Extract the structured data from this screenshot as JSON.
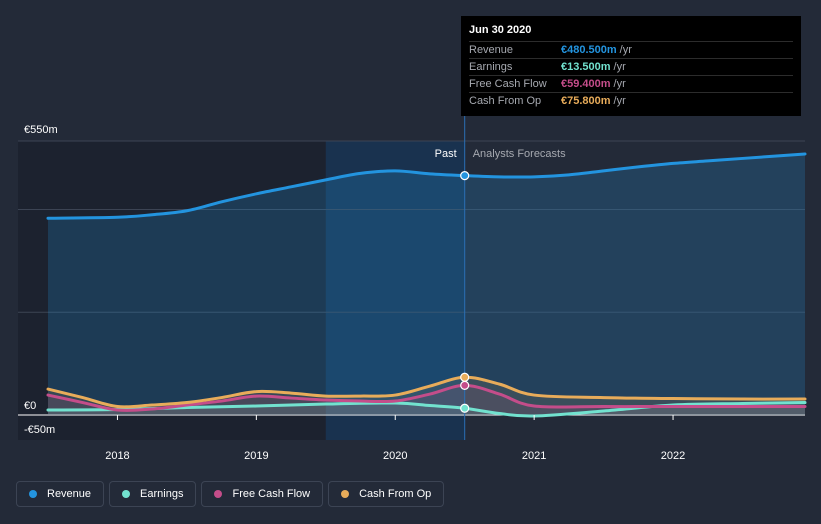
{
  "colors": {
    "revenue": "#2394df",
    "earnings": "#72e2cf",
    "fcf": "#c44d8a",
    "cfo": "#e8ac5a",
    "grid": "#3c4454",
    "background": "#232a38"
  },
  "tooltip": {
    "date": "Jun 30 2020",
    "rows": [
      {
        "name": "Revenue",
        "value": "€480.500m",
        "unit": "/yr",
        "color": "#2394df"
      },
      {
        "name": "Earnings",
        "value": "€13.500m",
        "unit": "/yr",
        "color": "#72e2cf"
      },
      {
        "name": "Free Cash Flow",
        "value": "€59.400m",
        "unit": "/yr",
        "color": "#c44d8a"
      },
      {
        "name": "Cash From Op",
        "value": "€75.800m",
        "unit": "/yr",
        "color": "#e8ac5a"
      }
    ]
  },
  "legend": [
    {
      "label": "Revenue",
      "color": "#2394df"
    },
    {
      "label": "Earnings",
      "color": "#72e2cf"
    },
    {
      "label": "Free Cash Flow",
      "color": "#c44d8a"
    },
    {
      "label": "Cash From Op",
      "color": "#e8ac5a"
    }
  ],
  "chart_data": {
    "type": "area",
    "title": "",
    "xlabel": "",
    "ylabel": "",
    "currency": "€",
    "y_labels": [
      "€550m",
      "€0",
      "-€50m"
    ],
    "ylim": [
      -50,
      550
    ],
    "xlim": [
      2017.5,
      2022.95
    ],
    "x_ticks": [
      2018,
      2019,
      2020,
      2021,
      2022
    ],
    "x_tick_labels": [
      "2018",
      "2019",
      "2020",
      "2021",
      "2022"
    ],
    "past_label": "Past",
    "forecast_label": "Analysts Forecasts",
    "past_shade_start": 2019.5,
    "divider_x": 2020.5,
    "highlight_date": "Jun 30 2020",
    "series": [
      {
        "name": "Revenue",
        "key": "revenue",
        "x": [
          2017.5,
          2018.0,
          2018.25,
          2018.5,
          2018.75,
          2019.0,
          2019.25,
          2019.5,
          2019.75,
          2020.0,
          2020.25,
          2020.5,
          2020.75,
          2021.0,
          2021.25,
          2021.5,
          2021.75,
          2022.0,
          2022.25,
          2022.5,
          2022.95
        ],
        "values": [
          395,
          397,
          402,
          410,
          428,
          444,
          458,
          472,
          485,
          490,
          484,
          480.5,
          478,
          478,
          482,
          490,
          498,
          505,
          510,
          515,
          524
        ]
      },
      {
        "name": "Earnings",
        "key": "earnings",
        "x": [
          2017.5,
          2018.0,
          2018.5,
          2019.0,
          2019.5,
          2020.0,
          2020.25,
          2020.5,
          2020.75,
          2021.0,
          2021.5,
          2022.0,
          2022.5,
          2022.95
        ],
        "values": [
          10,
          11,
          15,
          18,
          22,
          24,
          19,
          13.5,
          3,
          -2,
          8,
          20,
          23,
          25
        ]
      },
      {
        "name": "Free Cash Flow",
        "key": "fcf",
        "x": [
          2017.5,
          2017.75,
          2018.0,
          2018.25,
          2018.5,
          2018.75,
          2019.0,
          2019.25,
          2019.5,
          2019.75,
          2020.0,
          2020.25,
          2020.5,
          2020.75,
          2021.0,
          2021.5,
          2022.0,
          2022.5,
          2022.95
        ],
        "values": [
          40,
          25,
          10,
          12,
          20,
          28,
          38,
          34,
          30,
          28,
          28,
          42,
          59.4,
          42,
          18,
          17,
          17,
          17,
          17
        ]
      },
      {
        "name": "Cash From Op",
        "key": "cfo",
        "x": [
          2017.5,
          2017.75,
          2018.0,
          2018.25,
          2018.5,
          2018.75,
          2019.0,
          2019.25,
          2019.5,
          2019.75,
          2020.0,
          2020.25,
          2020.5,
          2020.75,
          2021.0,
          2021.5,
          2022.0,
          2022.5,
          2022.95
        ],
        "values": [
          52,
          35,
          17,
          20,
          25,
          35,
          47,
          44,
          38,
          38,
          40,
          58,
          75.8,
          62,
          40,
          35,
          33,
          32,
          32
        ]
      }
    ]
  }
}
